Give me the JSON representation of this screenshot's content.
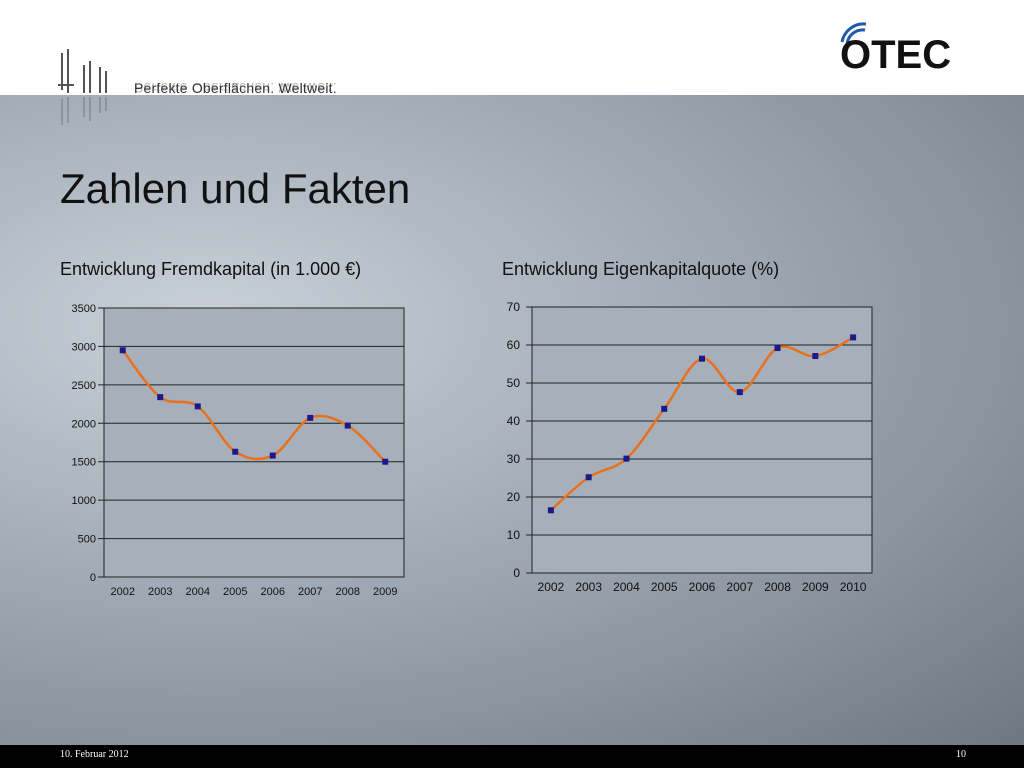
{
  "header": {
    "tagline": "Perfekte Oberflächen. Weltweit.",
    "brand": "OTEC"
  },
  "slide": {
    "title": "Zahlen und Fakten"
  },
  "footer": {
    "date": "10. Februar 2012",
    "page": "10"
  },
  "colors": {
    "line": "#e8711e",
    "marker": "#1a1a8c",
    "plot_bg": "#a7b0ba"
  },
  "chart_data": [
    {
      "type": "line",
      "title": "Entwicklung Fremdkapital (in 1.000 €)",
      "categories": [
        "2002",
        "2003",
        "2004",
        "2005",
        "2006",
        "2007",
        "2008",
        "2009"
      ],
      "series": [
        {
          "values": [
            2950,
            2340,
            2220,
            1630,
            1580,
            2070,
            1970,
            1500
          ]
        }
      ],
      "ylim": [
        0,
        3500
      ],
      "yticks": [
        "0",
        "500",
        "1000",
        "1500",
        "2000",
        "2500",
        "3000",
        "3500"
      ],
      "grid": true,
      "smooth": true
    },
    {
      "type": "line",
      "title": "Entwicklung Eigenkapitalquote (%)",
      "categories": [
        "2002",
        "2003",
        "2004",
        "2005",
        "2006",
        "2007",
        "2008",
        "2009",
        "2010"
      ],
      "series": [
        {
          "values": [
            16.5,
            25.2,
            30.1,
            43.2,
            56.4,
            47.6,
            59.2,
            57.1,
            62.0
          ]
        }
      ],
      "ylim": [
        0,
        70
      ],
      "yticks": [
        "0",
        "10",
        "20",
        "30",
        "40",
        "50",
        "60",
        "70"
      ],
      "grid": true,
      "smooth": true
    }
  ]
}
